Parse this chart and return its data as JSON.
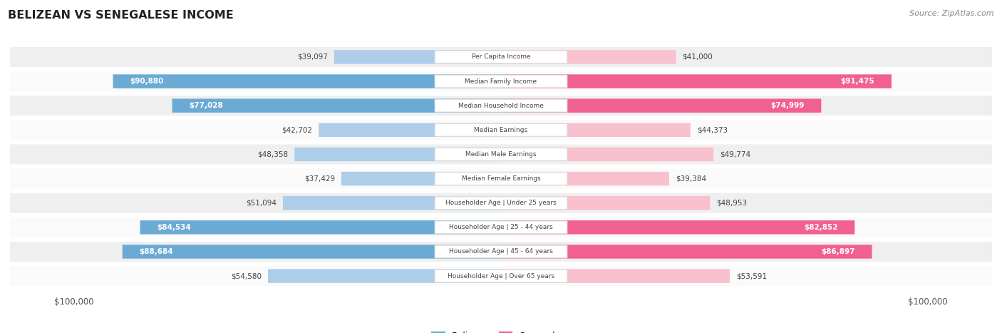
{
  "title": "BELIZEAN VS SENEGALESE INCOME",
  "source": "Source: ZipAtlas.com",
  "max_value": 100000,
  "categories": [
    "Per Capita Income",
    "Median Family Income",
    "Median Household Income",
    "Median Earnings",
    "Median Male Earnings",
    "Median Female Earnings",
    "Householder Age | Under 25 years",
    "Householder Age | 25 - 44 years",
    "Householder Age | 45 - 64 years",
    "Householder Age | Over 65 years"
  ],
  "belizean_values": [
    39097,
    90880,
    77028,
    42702,
    48358,
    37429,
    51094,
    84534,
    88684,
    54580
  ],
  "senegalese_values": [
    41000,
    91475,
    74999,
    44373,
    49774,
    39384,
    48953,
    82852,
    86897,
    53591
  ],
  "belizean_labels": [
    "$39,097",
    "$90,880",
    "$77,028",
    "$42,702",
    "$48,358",
    "$37,429",
    "$51,094",
    "$84,534",
    "$88,684",
    "$54,580"
  ],
  "senegalese_labels": [
    "$41,000",
    "$91,475",
    "$74,999",
    "$44,373",
    "$49,774",
    "$39,384",
    "$48,953",
    "$82,852",
    "$86,897",
    "$53,591"
  ],
  "bar_color_blue_light": "#AECDE8",
  "bar_color_blue_dark": "#6AAAD4",
  "bar_color_pink_light": "#F9C0CE",
  "bar_color_pink_dark": "#F06090",
  "threshold": 0.55,
  "bg_row_odd": "#EFEFEF",
  "bg_row_even": "#FAFAFA",
  "label_color_white": "#FFFFFF",
  "label_color_dark": "#444444",
  "title_color": "#222222",
  "center_label_color": "#444444",
  "center_box_color": "#FFFFFF",
  "center_box_edge": "#DDDDDD"
}
